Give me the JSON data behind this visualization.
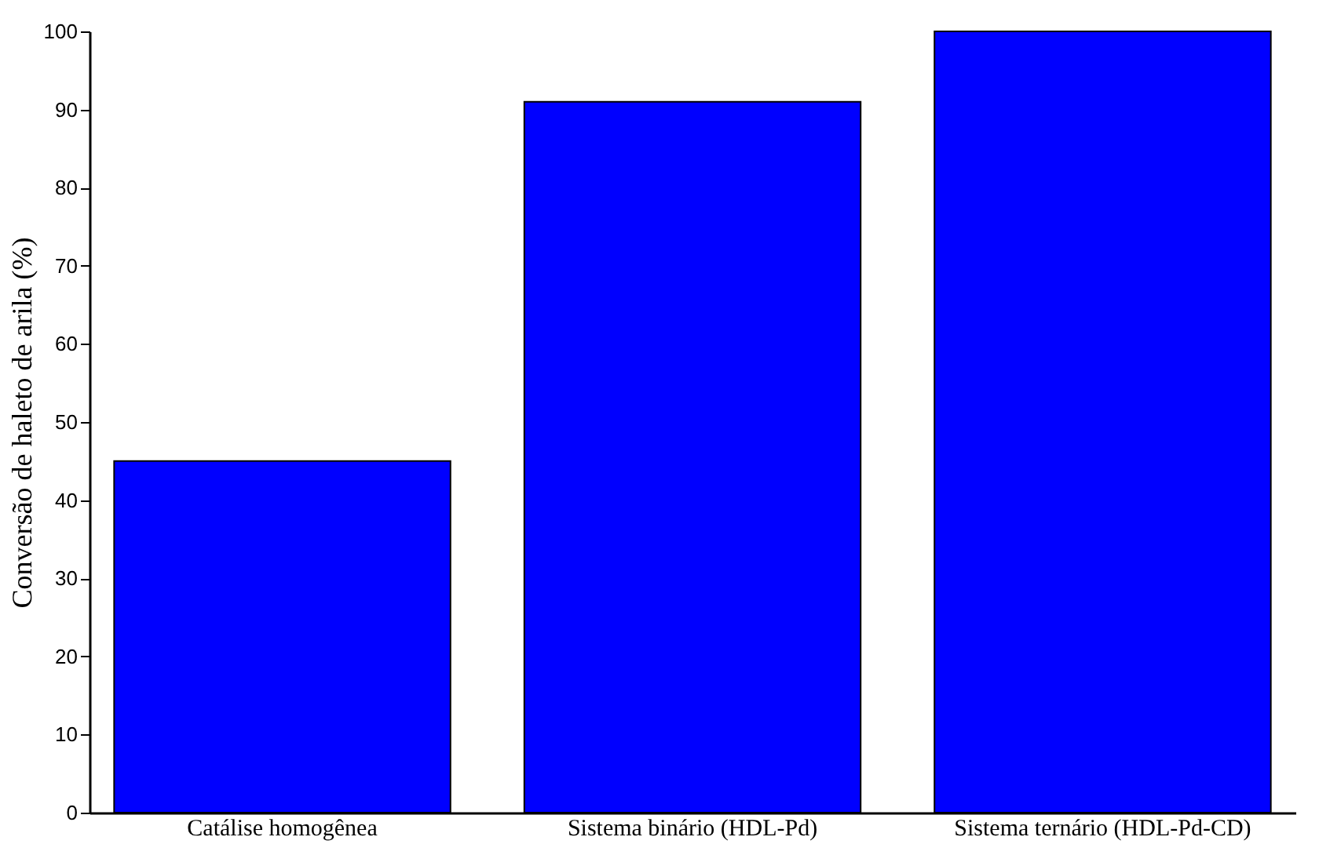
{
  "chart_data": {
    "type": "bar",
    "ylabel": "Conversão de haleto de arila (%)",
    "categories": [
      "Catálise homogênea",
      "Sistema binário (HDL-Pd)",
      "Sistema ternário (HDL-Pd-CD)"
    ],
    "values": [
      45,
      91,
      100
    ],
    "color": "#0000ff",
    "ylim": [
      0,
      100
    ],
    "yticks": [
      0,
      10,
      20,
      30,
      40,
      50,
      60,
      70,
      80,
      90,
      100
    ],
    "grid": false
  }
}
